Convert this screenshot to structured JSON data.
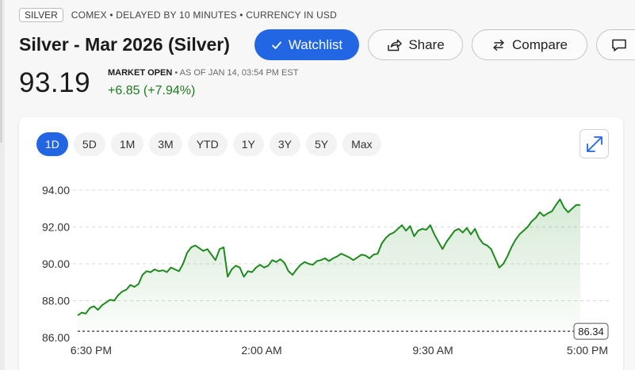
{
  "header": {
    "badge": "SILVER",
    "meta": "COMEX • DELAYED BY 10 MINUTES  • CURRENCY IN USD",
    "title": "Silver - Mar 2026 (Silver)"
  },
  "actions": {
    "watchlist": "Watchlist",
    "share": "Share",
    "compare": "Compare",
    "accent_color": "#2266e3"
  },
  "quote": {
    "price": "93.19",
    "market_status": "MARKET OPEN",
    "as_of": " • AS OF JAN 14, 03:54 PM EST",
    "change": "+6.85 (+7.94%)",
    "change_color": "#1f7a1f"
  },
  "range_tabs": [
    "1D",
    "5D",
    "1M",
    "3M",
    "YTD",
    "1Y",
    "3Y",
    "5Y",
    "Max"
  ],
  "active_range": "1D",
  "chart_data": {
    "type": "area",
    "x_tick_labels": [
      "6:30 PM",
      "2:00 AM",
      "9:30 AM",
      "5:00 PM"
    ],
    "y_tick_labels": [
      "94.00",
      "92.00",
      "90.00",
      "88.00",
      "86.00"
    ],
    "ylim": [
      86,
      94
    ],
    "grid": true,
    "previous_close": 86.34,
    "previous_close_label": "86.34",
    "line_color": "#1e8a1e",
    "series": [
      {
        "values": [
          87.2,
          87.35,
          87.3,
          87.6,
          87.7,
          87.5,
          87.75,
          87.9,
          88.05,
          88.0,
          88.3,
          88.5,
          88.6,
          88.85,
          88.75,
          88.9,
          89.4,
          89.6,
          89.55,
          89.7,
          89.6,
          89.65,
          89.55,
          89.8,
          89.7,
          89.6,
          90.0,
          90.6,
          90.9,
          91.0,
          90.85,
          90.7,
          90.8,
          90.5,
          90.2,
          90.8,
          90.9,
          89.3,
          89.7,
          89.9,
          89.8,
          89.3,
          89.6,
          89.55,
          89.8,
          89.95,
          89.8,
          89.9,
          90.2,
          90.1,
          90.25,
          90.05,
          89.6,
          89.4,
          89.7,
          89.95,
          90.1,
          90.0,
          89.95,
          90.15,
          90.2,
          90.3,
          90.15,
          90.3,
          90.4,
          90.55,
          90.45,
          90.35,
          90.2,
          90.35,
          90.5,
          90.45,
          90.3,
          90.5,
          90.55,
          91.1,
          91.4,
          91.6,
          91.7,
          91.9,
          92.1,
          91.8,
          92.05,
          91.5,
          91.8,
          91.9,
          91.85,
          92.1,
          91.6,
          91.2,
          90.8,
          91.2,
          91.5,
          91.8,
          91.9,
          91.7,
          91.95,
          91.6,
          91.9,
          91.4,
          91.1,
          91.0,
          90.8,
          90.3,
          89.8,
          90.0,
          90.4,
          90.9,
          91.3,
          91.6,
          91.8,
          92.0,
          92.3,
          92.5,
          92.8,
          92.6,
          92.75,
          92.85,
          93.2,
          93.5,
          93.05,
          92.8,
          93.0,
          93.2,
          93.19
        ]
      }
    ]
  }
}
